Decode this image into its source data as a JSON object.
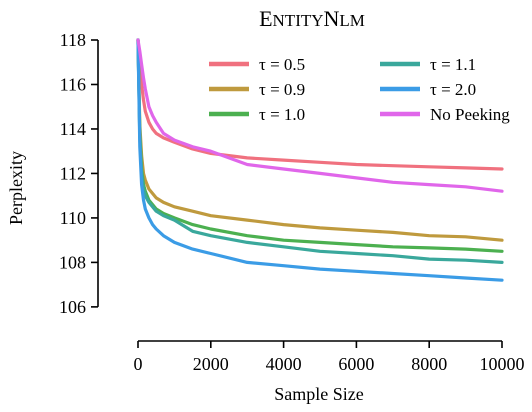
{
  "chart_data": {
    "type": "line",
    "title": "EntityNLM",
    "xlabel": "Sample Size",
    "ylabel": "Perplexity",
    "xlim": [
      0,
      10000
    ],
    "ylim": [
      105.5,
      118
    ],
    "xticks": [
      0,
      2000,
      4000,
      6000,
      8000,
      10000
    ],
    "yticks": [
      106,
      108,
      110,
      112,
      114,
      116,
      118
    ],
    "grid": false,
    "legend_position": "top-right",
    "series": [
      {
        "name": "τ = 0.5",
        "color": "#f0717f",
        "x": [
          0,
          50,
          100,
          150,
          200,
          300,
          400,
          500,
          700,
          1000,
          1500,
          2000,
          3000,
          4000,
          5000,
          6000,
          7000,
          8000,
          9000,
          10000
        ],
        "y": [
          118,
          116.8,
          116.0,
          115.3,
          114.8,
          114.3,
          114.0,
          113.8,
          113.6,
          113.4,
          113.1,
          112.9,
          112.7,
          112.6,
          112.5,
          112.4,
          112.35,
          112.3,
          112.25,
          112.2
        ]
      },
      {
        "name": "τ = 0.9",
        "color": "#bf9a3e",
        "x": [
          0,
          50,
          100,
          150,
          200,
          300,
          400,
          500,
          700,
          1000,
          1500,
          2000,
          3000,
          4000,
          5000,
          6000,
          7000,
          8000,
          9000,
          10000
        ],
        "y": [
          118,
          114.2,
          112.8,
          112.0,
          111.7,
          111.3,
          111.1,
          110.9,
          110.7,
          110.5,
          110.3,
          110.1,
          109.9,
          109.7,
          109.55,
          109.45,
          109.35,
          109.2,
          109.15,
          109.0
        ]
      },
      {
        "name": "τ = 1.0",
        "color": "#4cb050",
        "x": [
          0,
          50,
          100,
          150,
          200,
          300,
          400,
          500,
          700,
          1000,
          1500,
          2000,
          3000,
          4000,
          5000,
          6000,
          7000,
          8000,
          9000,
          10000
        ],
        "y": [
          118,
          113.8,
          112.2,
          111.5,
          111.2,
          110.8,
          110.6,
          110.4,
          110.2,
          110.0,
          109.7,
          109.5,
          109.2,
          109.0,
          108.9,
          108.8,
          108.7,
          108.65,
          108.6,
          108.5
        ]
      },
      {
        "name": "τ = 1.1",
        "color": "#3aa89c",
        "x": [
          0,
          50,
          100,
          150,
          200,
          300,
          400,
          500,
          700,
          1000,
          1500,
          2000,
          3000,
          4000,
          5000,
          6000,
          7000,
          8000,
          9000,
          10000
        ],
        "y": [
          118,
          113.6,
          112.0,
          111.3,
          111.0,
          110.7,
          110.5,
          110.3,
          110.1,
          109.9,
          109.4,
          109.2,
          108.9,
          108.7,
          108.5,
          108.4,
          108.3,
          108.15,
          108.1,
          108.0
        ]
      },
      {
        "name": "τ = 2.0",
        "color": "#3b9ce6",
        "x": [
          0,
          50,
          100,
          150,
          200,
          300,
          400,
          500,
          700,
          1000,
          1500,
          2000,
          3000,
          4000,
          5000,
          6000,
          7000,
          8000,
          9000,
          10000
        ],
        "y": [
          118,
          113.2,
          111.5,
          110.8,
          110.4,
          110.0,
          109.7,
          109.5,
          109.2,
          108.9,
          108.6,
          108.4,
          108.0,
          107.85,
          107.7,
          107.6,
          107.5,
          107.4,
          107.3,
          107.2
        ]
      },
      {
        "name": "No Peeking",
        "color": "#e066ea",
        "x": [
          0,
          50,
          100,
          150,
          200,
          300,
          400,
          500,
          700,
          1000,
          1500,
          2000,
          3000,
          4000,
          5000,
          6000,
          7000,
          8000,
          9000,
          10000
        ],
        "y": [
          118,
          117.5,
          116.9,
          116.3,
          115.8,
          115.0,
          114.6,
          114.3,
          113.8,
          113.5,
          113.2,
          113.0,
          112.4,
          112.2,
          112.0,
          111.8,
          111.6,
          111.5,
          111.4,
          111.2
        ]
      }
    ]
  }
}
